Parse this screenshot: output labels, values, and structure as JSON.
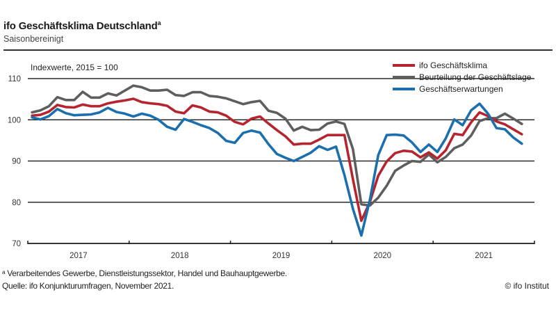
{
  "header": {
    "title": "ifo Geschäftsklima Deutschland",
    "title_sup": "a",
    "subtitle": "Saisonbereinigt"
  },
  "footer": {
    "footnote": "ᵃ Verarbeitendes Gewerbe, Dienstleistungssektor, Handel und Bauhauptgewerbe.",
    "source": "Quelle: ifo Konjunkturumfragen, November 2021.",
    "copyright": "© ifo Institut"
  },
  "chart_data": {
    "type": "line",
    "title": "ifo Geschäftsklima Deutschland",
    "subtitle": "Saisonbereinigt",
    "unit_label": "Indexwerte, 2015 = 100",
    "xlabel": "",
    "ylabel": "",
    "ylim": [
      70,
      110
    ],
    "yticks": [
      70,
      80,
      90,
      100,
      110
    ],
    "grid": true,
    "legend_position": "top-right",
    "x_start": "2017-01",
    "x_end": "2021-11",
    "x_year_labels": [
      "2017",
      "2018",
      "2019",
      "2020",
      "2021"
    ],
    "series": [
      {
        "name": "ifo Geschäftsklima",
        "color": "#b5242f",
        "values": [
          101.0,
          101.2,
          102.0,
          103.6,
          103.1,
          103.0,
          103.7,
          103.3,
          103.3,
          104.0,
          104.4,
          104.7,
          105.1,
          104.3,
          104.0,
          103.8,
          103.4,
          102.0,
          101.6,
          103.5,
          103.0,
          102.0,
          101.8,
          101.0,
          99.5,
          98.9,
          100.3,
          100.8,
          99.1,
          97.5,
          96.0,
          94.0,
          94.2,
          94.2,
          95.2,
          96.3,
          96.3,
          96.3,
          85.6,
          75.5,
          80.0,
          86.4,
          89.9,
          91.9,
          92.5,
          92.3,
          90.9,
          92.1,
          90.6,
          92.6,
          96.6,
          96.3,
          99.4,
          101.8,
          100.9,
          99.6,
          98.9,
          97.7,
          96.5
        ],
        "legend_label": "ifo Geschäftsklima"
      },
      {
        "name": "Beurteilung der Geschäftslage",
        "color": "#5e5e5e",
        "values": [
          101.8,
          102.3,
          103.3,
          105.5,
          104.8,
          104.8,
          106.8,
          105.4,
          105.4,
          106.4,
          105.9,
          107.1,
          108.3,
          107.9,
          107.1,
          107.1,
          107.3,
          106.0,
          105.8,
          106.7,
          106.7,
          105.8,
          105.6,
          105.2,
          104.5,
          103.8,
          104.3,
          104.6,
          102.2,
          101.7,
          100.3,
          97.4,
          98.3,
          97.5,
          97.6,
          99.1,
          99.6,
          99.0,
          92.9,
          79.5,
          79.2,
          81.1,
          84.0,
          87.6,
          88.9,
          90.0,
          89.8,
          91.6,
          89.7,
          91.0,
          93.1,
          94.0,
          96.2,
          99.7,
          100.4,
          100.4,
          101.5,
          100.3,
          99.0
        ],
        "legend_label": "Beurteilung der Geschäftslage"
      },
      {
        "name": "Geschäftserwartungen",
        "color": "#1c6fad",
        "values": [
          100.6,
          100.1,
          100.9,
          102.6,
          101.6,
          101.1,
          101.2,
          101.3,
          101.8,
          102.9,
          101.9,
          101.5,
          100.8,
          101.5,
          101.0,
          100.0,
          98.3,
          97.6,
          100.2,
          99.5,
          98.7,
          98.0,
          96.8,
          94.9,
          94.4,
          96.8,
          97.4,
          96.9,
          94.1,
          91.7,
          90.8,
          90.0,
          91.0,
          92.0,
          93.6,
          92.7,
          93.5,
          86.6,
          78.4,
          71.9,
          80.5,
          91.4,
          96.3,
          96.4,
          96.2,
          94.5,
          92.2,
          94.0,
          92.2,
          95.5,
          100.1,
          98.7,
          102.3,
          103.9,
          101.5,
          98.0,
          97.7,
          95.7,
          94.2
        ],
        "legend_label": "Geschäftserwartungen"
      }
    ]
  }
}
